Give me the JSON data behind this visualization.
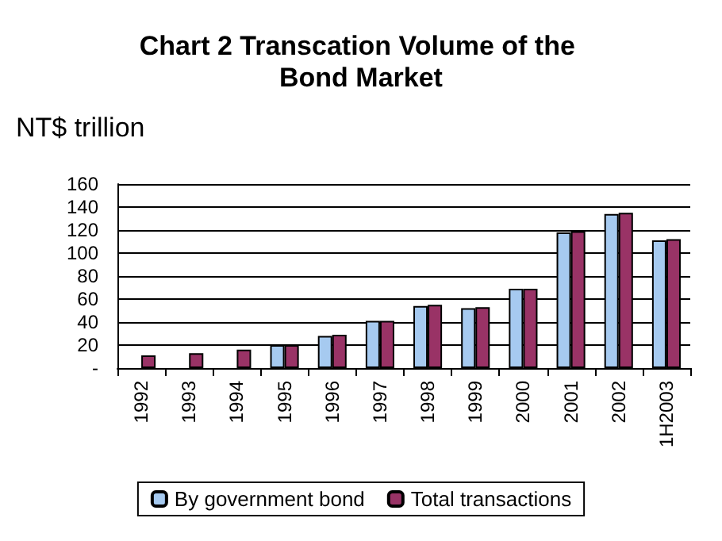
{
  "chart_data": {
    "type": "bar",
    "title": "Chart 2 Transcation Volume of the Bond Market",
    "ylabel": "NT$ trillion",
    "categories": [
      "1992",
      "1993",
      "1994",
      "1995",
      "1996",
      "1997",
      "1998",
      "1999",
      "2000",
      "2001",
      "2002",
      "1H2003"
    ],
    "series": [
      {
        "name": "By government bond",
        "color": "#a6caf0",
        "values": [
          null,
          null,
          null,
          20,
          28,
          41,
          54,
          52,
          69,
          118,
          134,
          111
        ]
      },
      {
        "name": "Total transactions",
        "color": "#993366",
        "values": [
          11,
          13,
          16,
          20,
          29,
          41,
          55,
          53,
          69,
          119,
          135,
          112
        ]
      }
    ],
    "ylim": [
      0,
      160
    ],
    "yticks": [
      {
        "value": 0,
        "label": "-"
      },
      20,
      40,
      60,
      80,
      100,
      120,
      140,
      160
    ],
    "grid": "y",
    "legend": "bottom"
  }
}
